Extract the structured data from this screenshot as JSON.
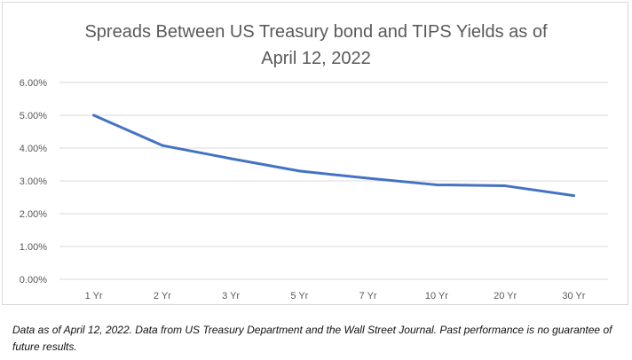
{
  "chart_data": {
    "type": "line",
    "title_line1": "Spreads Between US Treasury bond and TIPS Yields as of",
    "title_line2": "April 12, 2022",
    "categories": [
      "1 Yr",
      "2 Yr",
      "3 Yr",
      "5 Yr",
      "7 Yr",
      "10 Yr",
      "20 Yr",
      "30 Yr"
    ],
    "series": [
      {
        "values": [
          5.0,
          4.08,
          3.68,
          3.3,
          3.08,
          2.88,
          2.85,
          2.55
        ]
      }
    ],
    "ylim": [
      0,
      6
    ],
    "yticks": [
      "0.00%",
      "1.00%",
      "2.00%",
      "3.00%",
      "4.00%",
      "5.00%",
      "6.00%"
    ],
    "grid": true,
    "legend": "none",
    "line_color": "#4472c4",
    "grid_color": "#d9d9d9"
  },
  "footnote": "Data as of April 12, 2022. Data from US Treasury Department and the Wall Street Journal. Past performance is no guarantee of future results."
}
